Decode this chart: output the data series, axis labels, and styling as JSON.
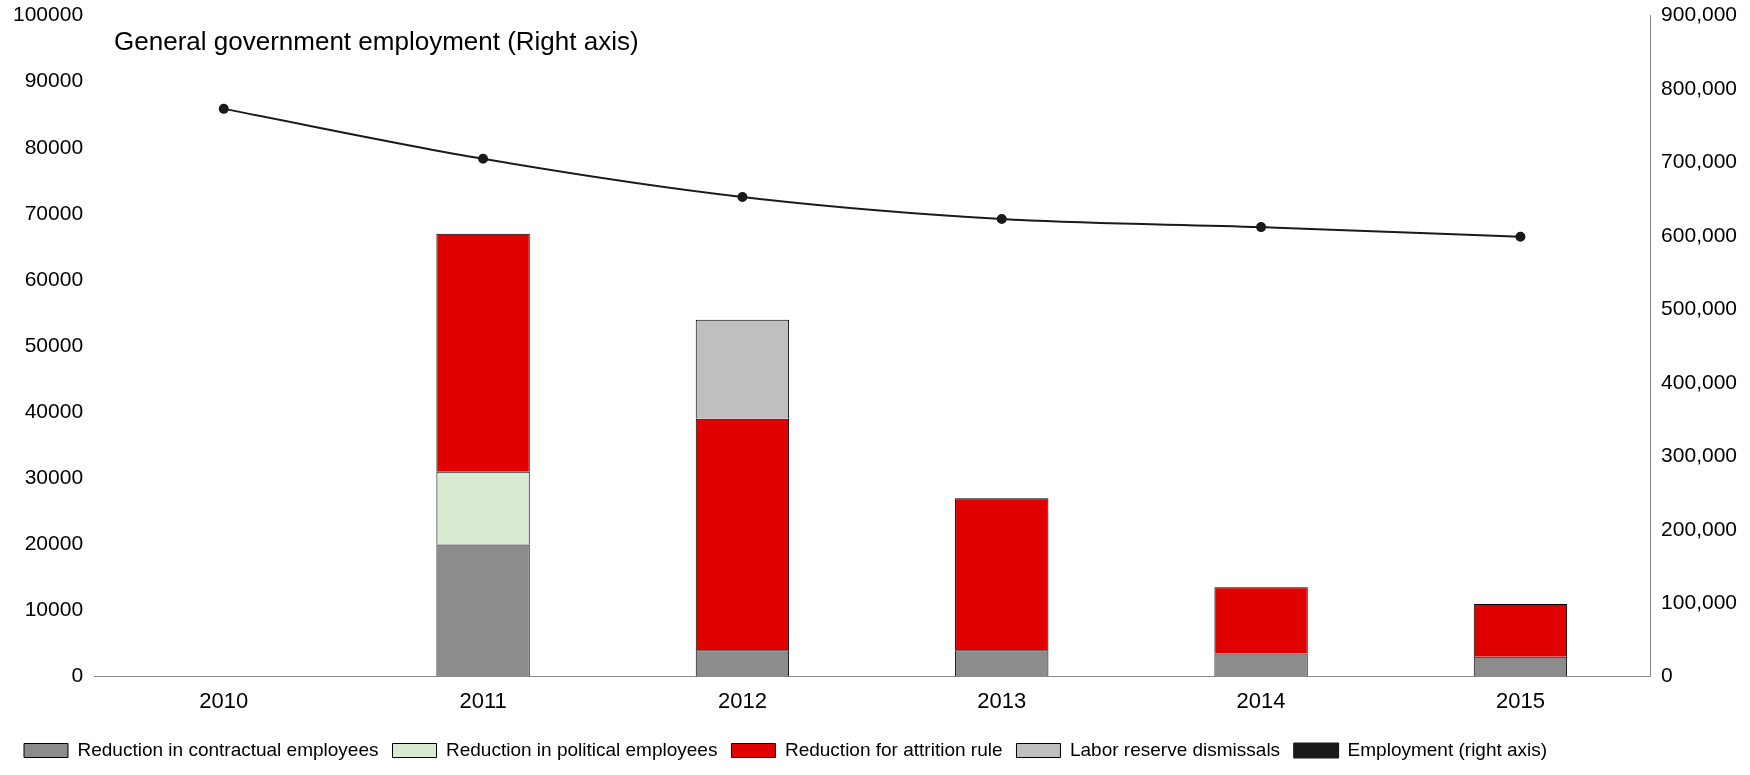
{
  "chart_data": {
    "type": "bar",
    "stacked": true,
    "categories": [
      "2010",
      "2011",
      "2012",
      "2013",
      "2014",
      "2015"
    ],
    "series": [
      {
        "name": "Reduction in contractual employees",
        "color": "#8c8c8c",
        "values": [
          null,
          20000,
          4000,
          4000,
          3500,
          3000
        ]
      },
      {
        "name": "Reduction in political employees",
        "color": "#d9ead3",
        "values": [
          null,
          11000,
          null,
          null,
          null,
          null
        ]
      },
      {
        "name": "Reduction for attrition rule",
        "color": "#e00000",
        "values": [
          null,
          36000,
          35000,
          23000,
          10000,
          8000
        ]
      },
      {
        "name": "Labor reserve dismissals",
        "color": "#bfbfbf",
        "values": [
          null,
          null,
          15000,
          null,
          null,
          null
        ]
      },
      {
        "name": "Employment (right axis)",
        "type": "line",
        "axis": "y2",
        "color": "#1a1a1a",
        "values": [
          773000,
          705000,
          653000,
          623000,
          612000,
          599000
        ]
      }
    ],
    "ylim": [
      0,
      100000
    ],
    "yticks": [
      0,
      10000,
      20000,
      30000,
      40000,
      50000,
      60000,
      70000,
      80000,
      90000,
      100000
    ],
    "y2lim": [
      0,
      900000
    ],
    "y2ticks": [
      {
        "value": 0,
        "label": "0"
      },
      {
        "value": 100000,
        "label": "100,000"
      },
      {
        "value": 200000,
        "label": "200,000"
      },
      {
        "value": 300000,
        "label": "300,000"
      },
      {
        "value": 400000,
        "label": "400,000"
      },
      {
        "value": 500000,
        "label": "500,000"
      },
      {
        "value": 600000,
        "label": "600,000"
      },
      {
        "value": 700000,
        "label": "700,000"
      },
      {
        "value": 800000,
        "label": "800,000"
      },
      {
        "value": 900000,
        "label": "900,000"
      }
    ],
    "annotations": [
      "General government employment (Right axis)"
    ],
    "marker": "circle",
    "legend": "bottom",
    "grid": false
  }
}
